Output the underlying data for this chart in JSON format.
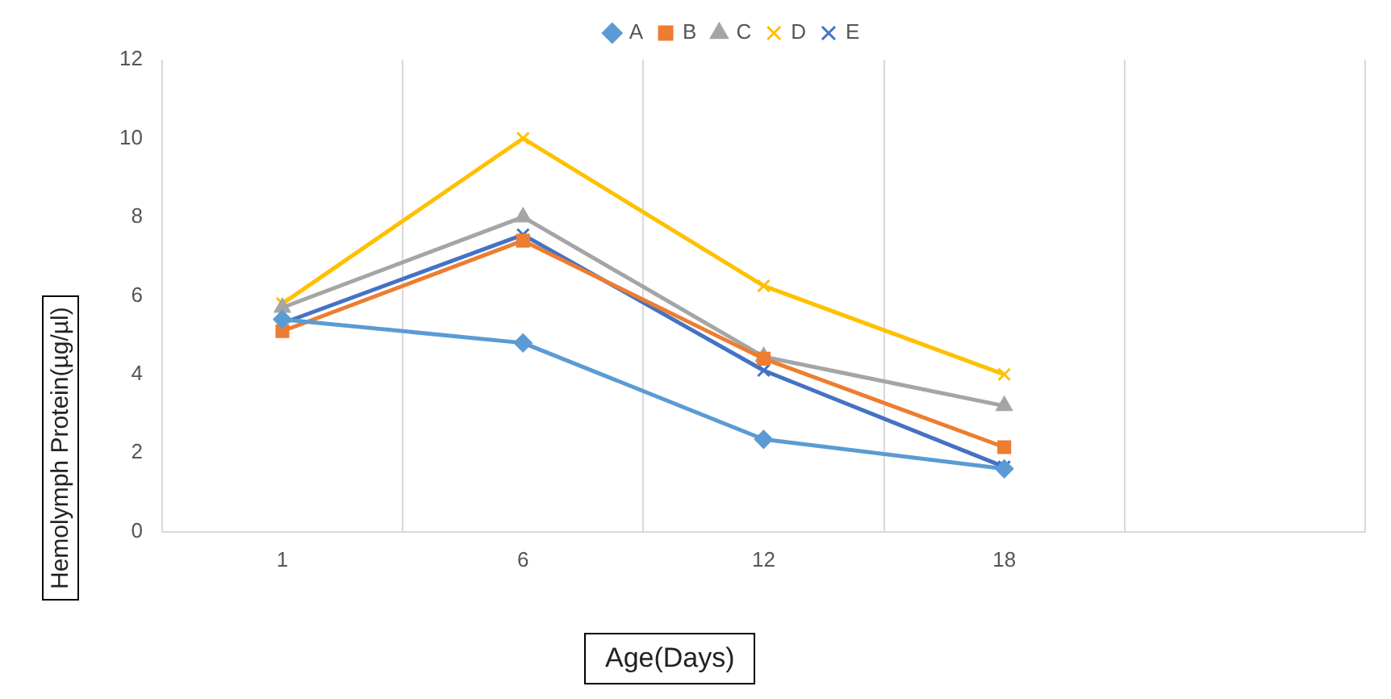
{
  "chart_data": {
    "type": "line",
    "xlabel": "Age(Days)",
    "ylabel": "Hemolymph Protein(µg/µl)",
    "categories": [
      "1",
      "6",
      "12",
      "18",
      null
    ],
    "series": [
      {
        "name": "A",
        "color": "#5b9bd5",
        "marker": "diamond",
        "values": [
          5.4,
          4.8,
          2.35,
          1.6,
          null
        ]
      },
      {
        "name": "B",
        "color": "#ed7d31",
        "marker": "square",
        "values": [
          5.1,
          7.4,
          4.4,
          2.15,
          null
        ]
      },
      {
        "name": "C",
        "color": "#a5a5a5",
        "marker": "triangle",
        "values": [
          5.7,
          8.0,
          4.45,
          3.2,
          null
        ]
      },
      {
        "name": "D",
        "color": "#ffc000",
        "marker": "cross",
        "values": [
          5.8,
          10.0,
          6.25,
          4.0,
          null
        ]
      },
      {
        "name": "E",
        "color": "#4472c4",
        "marker": "cross",
        "values": [
          5.3,
          7.55,
          4.1,
          1.65,
          null
        ]
      }
    ],
    "ylim": [
      0,
      12
    ],
    "yticks": [
      0,
      2,
      4,
      6,
      8,
      10,
      12
    ],
    "grid": "x",
    "legend": "top"
  }
}
